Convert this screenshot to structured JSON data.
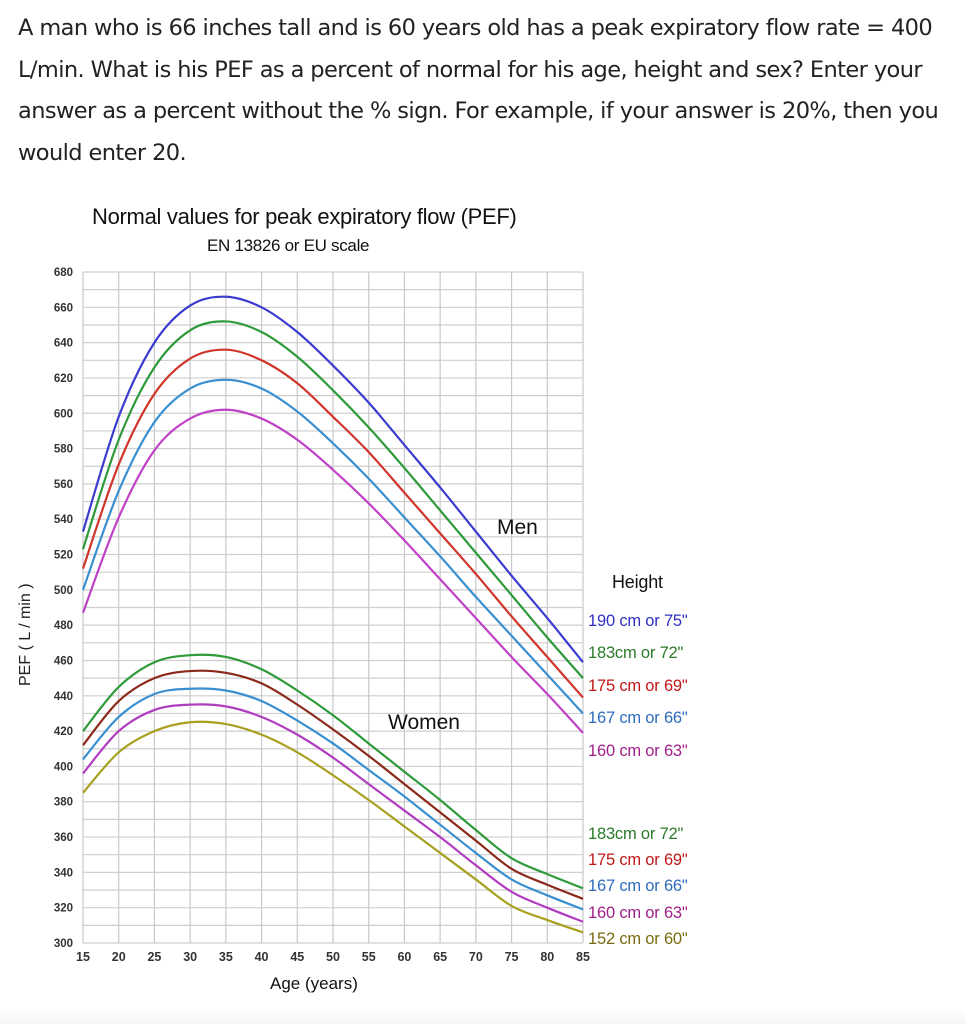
{
  "question": {
    "text": "A man who is 66 inches tall and is 60 years old has a peak expiratory flow rate = 400 L/min. What is his PEF as a percent of normal for his age, height and sex? Enter your answer as a percent without the % sign. For example, if your answer is 20%, then you would enter 20."
  },
  "chart_data": {
    "type": "line",
    "title": "Normal values for peak expiratory flow (PEF)",
    "subtitle": "EN 13826 or EU scale",
    "xlabel": "Age (years)",
    "ylabel": "PEF ( L / min )",
    "xlim": [
      15,
      85
    ],
    "ylim": [
      300,
      680
    ],
    "x_ticks": [
      15,
      20,
      25,
      30,
      35,
      40,
      45,
      50,
      55,
      60,
      65,
      70,
      75,
      80,
      85
    ],
    "y_ticks": [
      300,
      320,
      340,
      360,
      380,
      400,
      420,
      440,
      460,
      480,
      500,
      520,
      540,
      560,
      580,
      600,
      620,
      640,
      660,
      680
    ],
    "grid": true,
    "legend_title": "Height",
    "annotations": [
      "Men",
      "Women"
    ],
    "x": [
      15,
      20,
      25,
      30,
      35,
      40,
      45,
      50,
      55,
      60,
      65,
      70,
      75,
      80,
      85
    ],
    "series": [
      {
        "group": "Men",
        "name": "190 cm or 75\"",
        "color": "#3b3bd0",
        "values": [
          533,
          598,
          640,
          661,
          666,
          660,
          646,
          627,
          606,
          582,
          558,
          533,
          508,
          484,
          459
        ]
      },
      {
        "group": "Men",
        "name": "183cm or 72\"",
        "color": "#2e9a3a",
        "values": [
          523,
          585,
          626,
          647,
          652,
          646,
          632,
          613,
          592,
          569,
          545,
          521,
          497,
          473,
          450
        ]
      },
      {
        "group": "Men",
        "name": "175 cm or 69\"",
        "color": "#d0352a",
        "values": [
          512,
          571,
          611,
          631,
          636,
          630,
          617,
          598,
          578,
          555,
          532,
          509,
          485,
          462,
          439
        ]
      },
      {
        "group": "Men",
        "name": "167 cm or 66\"",
        "color": "#3a8fd0",
        "values": [
          500,
          556,
          595,
          614,
          619,
          614,
          601,
          583,
          563,
          541,
          519,
          496,
          474,
          452,
          430
        ]
      },
      {
        "group": "Men",
        "name": "160 cm or 63\"",
        "color": "#c040c8",
        "values": [
          487,
          541,
          579,
          597,
          602,
          597,
          585,
          568,
          549,
          528,
          506,
          484,
          462,
          441,
          419
        ]
      },
      {
        "group": "Women",
        "name": "183cm or 72\"",
        "color": "#2e9a3a",
        "values": [
          420,
          445,
          459,
          463,
          462,
          455,
          443,
          429,
          413,
          397,
          381,
          364,
          348,
          339,
          331
        ]
      },
      {
        "group": "Women",
        "name": "175 cm or 69\"",
        "color": "#8b2a1a",
        "values": [
          412,
          437,
          450,
          454,
          453,
          447,
          435,
          421,
          406,
          390,
          374,
          358,
          342,
          333,
          325
        ]
      },
      {
        "group": "Women",
        "name": "167 cm or 66\"",
        "color": "#3a8fd0",
        "values": [
          404,
          428,
          441,
          444,
          443,
          437,
          426,
          413,
          398,
          383,
          367,
          351,
          336,
          327,
          319
        ]
      },
      {
        "group": "Women",
        "name": "160 cm or 63\"",
        "color": "#b03cc0",
        "values": [
          396,
          420,
          432,
          435,
          434,
          428,
          418,
          405,
          390,
          375,
          360,
          344,
          329,
          320,
          312
        ]
      },
      {
        "group": "Women",
        "name": "152 cm or 60\"",
        "color": "#a8a020",
        "values": [
          385,
          408,
          420,
          425,
          424,
          418,
          408,
          395,
          381,
          366,
          351,
          336,
          321,
          313,
          306
        ]
      }
    ]
  },
  "legend": {
    "title": "Height",
    "men": [
      {
        "label": "190 cm or 75\"",
        "color": "#3030c0"
      },
      {
        "label": "183cm or 72\"",
        "color": "#2a7a2a"
      },
      {
        "label": "175 cm or 69\"",
        "color": "#c01818"
      },
      {
        "label": "167 cm or 66\"",
        "color": "#2e6cc0"
      },
      {
        "label": "160 cm or 63\"",
        "color": "#a0208a"
      }
    ],
    "women": [
      {
        "label": "183cm or 72\"",
        "color": "#2a7a2a"
      },
      {
        "label": "175 cm or 69\"",
        "color": "#c01818"
      },
      {
        "label": "167 cm or 66\"",
        "color": "#2e6cc0"
      },
      {
        "label": "160 cm or 63\"",
        "color": "#a0208a"
      },
      {
        "label": "152 cm or 60\"",
        "color": "#7a6a10"
      }
    ]
  }
}
